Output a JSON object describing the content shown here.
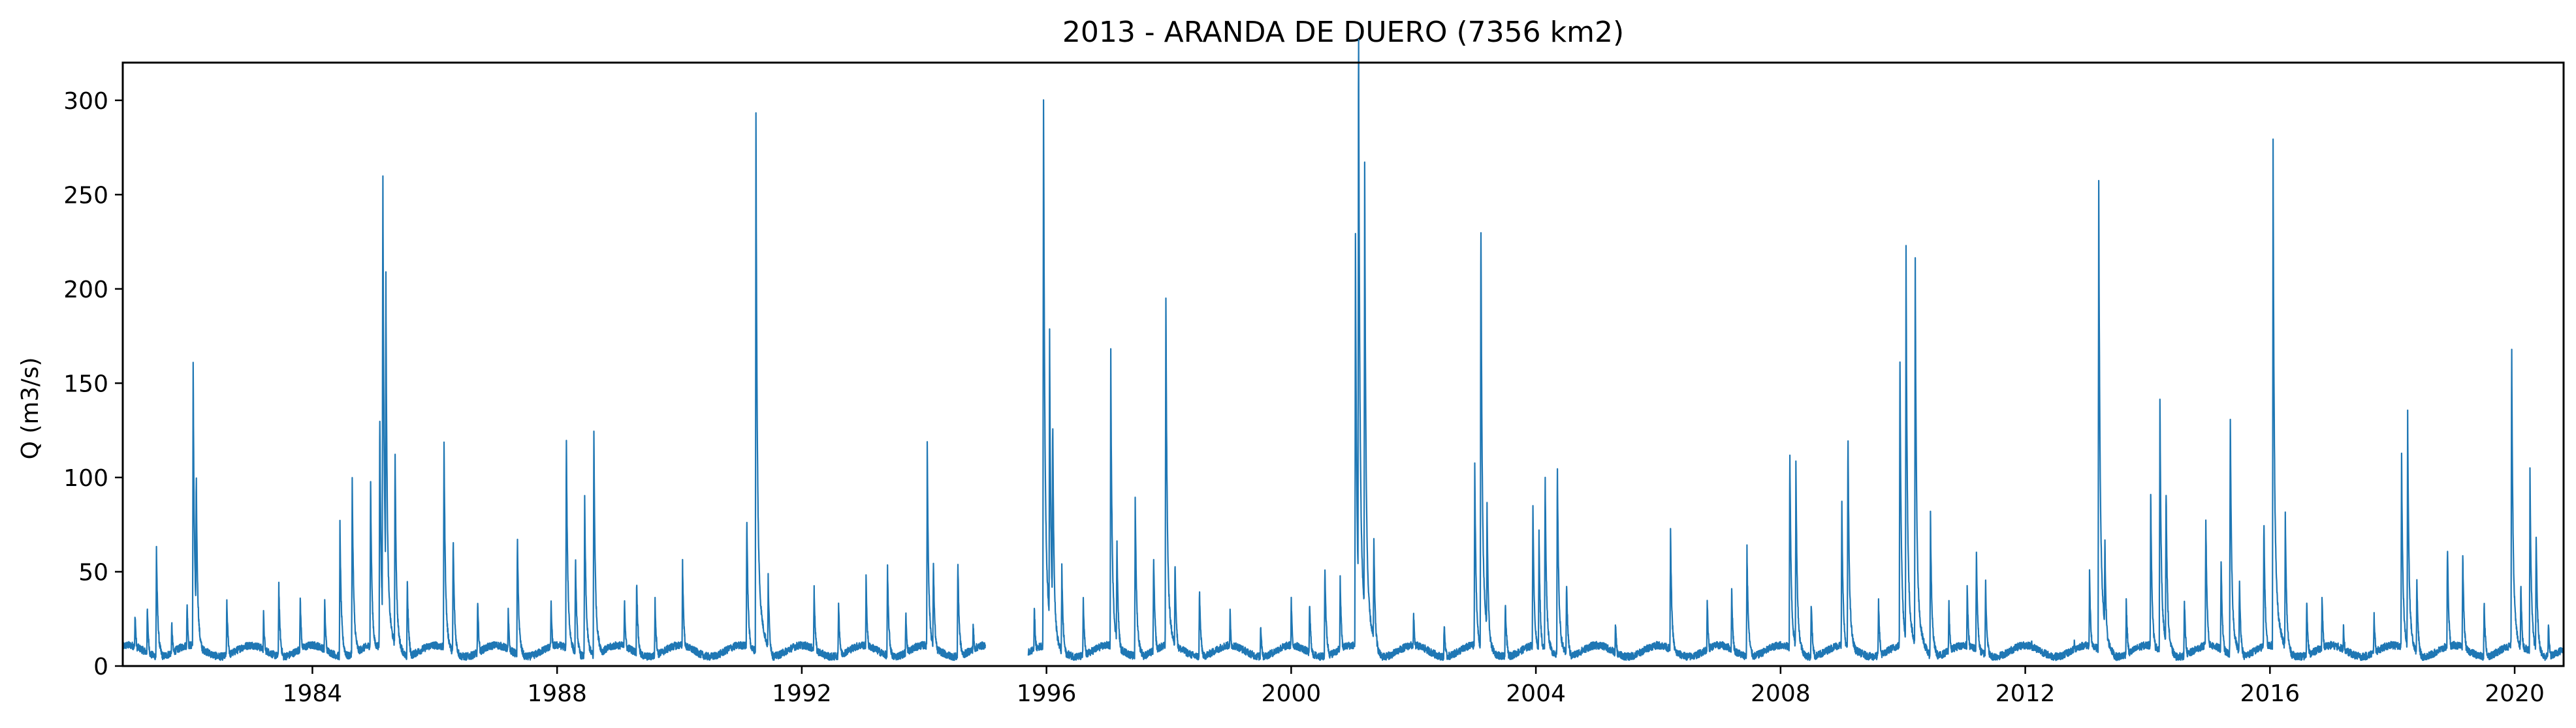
{
  "chart_data": {
    "type": "line",
    "title": "2013 - ARANDA DE DUERO (7356 km2)",
    "xlabel": "",
    "ylabel": "Q (m3/s)",
    "xlim": [
      1980.9,
      2020.8
    ],
    "ylim": [
      0,
      320
    ],
    "x_ticks": [
      1984,
      1988,
      1992,
      1996,
      2000,
      2004,
      2008,
      2012,
      2016,
      2020
    ],
    "x_tick_labels": [
      "1984",
      "1988",
      "1992",
      "1996",
      "2000",
      "2004",
      "2008",
      "2012",
      "2016",
      "2020"
    ],
    "y_ticks": [
      0,
      50,
      100,
      150,
      200,
      250,
      300
    ],
    "y_tick_labels": [
      "0",
      "50",
      "100",
      "150",
      "200",
      "250",
      "300"
    ],
    "grid": false,
    "line_color": "#1f77b4",
    "series": [
      {
        "name": "",
        "gaps": [
          [
            1995.0,
            1995.7
          ]
        ],
        "baseline": 8,
        "peaks": [
          [
            1981.1,
            25
          ],
          [
            1981.3,
            27
          ],
          [
            1981.45,
            54
          ],
          [
            1981.7,
            20
          ],
          [
            1981.95,
            30
          ],
          [
            1982.05,
            135
          ],
          [
            1982.1,
            90
          ],
          [
            1982.6,
            30
          ],
          [
            1983.2,
            24
          ],
          [
            1983.45,
            37
          ],
          [
            1983.8,
            32
          ],
          [
            1984.2,
            30
          ],
          [
            1984.45,
            64
          ],
          [
            1984.65,
            86
          ],
          [
            1984.95,
            87
          ],
          [
            1985.1,
            120
          ],
          [
            1985.15,
            233
          ],
          [
            1985.2,
            180
          ],
          [
            1985.35,
            100
          ],
          [
            1985.55,
            40
          ],
          [
            1986.15,
            107
          ],
          [
            1986.3,
            60
          ],
          [
            1986.7,
            30
          ],
          [
            1987.2,
            25
          ],
          [
            1987.35,
            60
          ],
          [
            1987.9,
            30
          ],
          [
            1988.15,
            106
          ],
          [
            1988.3,
            50
          ],
          [
            1988.45,
            77
          ],
          [
            1988.6,
            108
          ],
          [
            1989.1,
            32
          ],
          [
            1989.3,
            40
          ],
          [
            1989.6,
            30
          ],
          [
            1990.05,
            47
          ],
          [
            1991.1,
            70
          ],
          [
            1991.25,
            248
          ],
          [
            1991.45,
            40
          ],
          [
            1992.2,
            37
          ],
          [
            1992.6,
            30
          ],
          [
            1993.05,
            40
          ],
          [
            1993.4,
            45
          ],
          [
            1993.7,
            25
          ],
          [
            1994.05,
            101
          ],
          [
            1994.15,
            50
          ],
          [
            1994.55,
            49
          ],
          [
            1994.8,
            20
          ],
          [
            1995.8,
            28
          ],
          [
            1995.95,
            270
          ],
          [
            1996.05,
            150
          ],
          [
            1996.1,
            117
          ],
          [
            1996.25,
            45
          ],
          [
            1996.6,
            30
          ],
          [
            1997.05,
            141
          ],
          [
            1997.15,
            60
          ],
          [
            1997.45,
            76
          ],
          [
            1997.75,
            52
          ],
          [
            1997.95,
            176
          ],
          [
            1998.1,
            50
          ],
          [
            1998.5,
            35
          ],
          [
            1999.0,
            25
          ],
          [
            1999.5,
            20
          ],
          [
            2000.0,
            30
          ],
          [
            2000.3,
            30
          ],
          [
            2000.55,
            47
          ],
          [
            2000.8,
            40
          ],
          [
            2001.05,
            193
          ],
          [
            2001.1,
            305
          ],
          [
            2001.2,
            233
          ],
          [
            2001.35,
            60
          ],
          [
            2002.0,
            25
          ],
          [
            2002.5,
            20
          ],
          [
            2003.0,
            92
          ],
          [
            2003.1,
            211
          ],
          [
            2003.2,
            75
          ],
          [
            2003.5,
            30
          ],
          [
            2003.95,
            75
          ],
          [
            2004.05,
            60
          ],
          [
            2004.15,
            89
          ],
          [
            2004.35,
            93
          ],
          [
            2004.5,
            40
          ],
          [
            2005.3,
            20
          ],
          [
            2006.2,
            62
          ],
          [
            2006.8,
            30
          ],
          [
            2007.2,
            36
          ],
          [
            2007.45,
            53
          ],
          [
            2008.15,
            100
          ],
          [
            2008.25,
            91
          ],
          [
            2008.5,
            30
          ],
          [
            2009.0,
            75
          ],
          [
            2009.1,
            109
          ],
          [
            2009.6,
            30
          ],
          [
            2009.95,
            145
          ],
          [
            2010.05,
            187
          ],
          [
            2010.2,
            188
          ],
          [
            2010.45,
            68
          ],
          [
            2010.75,
            30
          ],
          [
            2011.05,
            37
          ],
          [
            2011.2,
            53
          ],
          [
            2011.35,
            40
          ],
          [
            2012.1,
            12
          ],
          [
            2012.8,
            12
          ],
          [
            2013.05,
            42
          ],
          [
            2013.2,
            222
          ],
          [
            2013.3,
            60
          ],
          [
            2013.65,
            30
          ],
          [
            2014.05,
            78
          ],
          [
            2014.2,
            123
          ],
          [
            2014.3,
            85
          ],
          [
            2014.6,
            30
          ],
          [
            2014.95,
            69
          ],
          [
            2015.2,
            49
          ],
          [
            2015.35,
            118
          ],
          [
            2015.5,
            40
          ],
          [
            2015.9,
            68
          ],
          [
            2016.05,
            235
          ],
          [
            2016.25,
            68
          ],
          [
            2016.6,
            30
          ],
          [
            2016.85,
            32
          ],
          [
            2017.2,
            20
          ],
          [
            2017.7,
            25
          ],
          [
            2018.15,
            100
          ],
          [
            2018.25,
            114
          ],
          [
            2018.4,
            40
          ],
          [
            2018.9,
            57
          ],
          [
            2019.15,
            53
          ],
          [
            2019.5,
            30
          ],
          [
            2019.95,
            150
          ],
          [
            2020.1,
            40
          ],
          [
            2020.25,
            87
          ],
          [
            2020.35,
            62
          ],
          [
            2020.55,
            20
          ]
        ]
      }
    ]
  }
}
